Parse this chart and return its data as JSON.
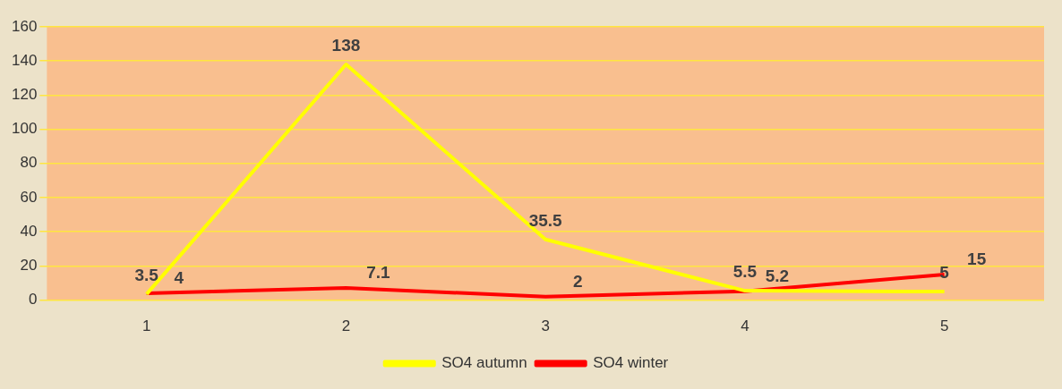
{
  "chart_data": {
    "type": "line",
    "categories": [
      "1",
      "2",
      "3",
      "4",
      "5"
    ],
    "series": [
      {
        "name": "SO4 autumn",
        "color": "#ffff00",
        "values": [
          3.5,
          138,
          35.5,
          5.5,
          5
        ]
      },
      {
        "name": "SO4 winter",
        "color": "#ff0000",
        "values": [
          4,
          7.1,
          2,
          5.2,
          15
        ]
      }
    ],
    "ylim": [
      0,
      160
    ],
    "yticks": [
      0,
      20,
      40,
      60,
      80,
      100,
      120,
      140,
      160
    ],
    "grid": "y",
    "legend": "bottom",
    "marker": "none",
    "line_style": "solid",
    "data_labels": true
  }
}
